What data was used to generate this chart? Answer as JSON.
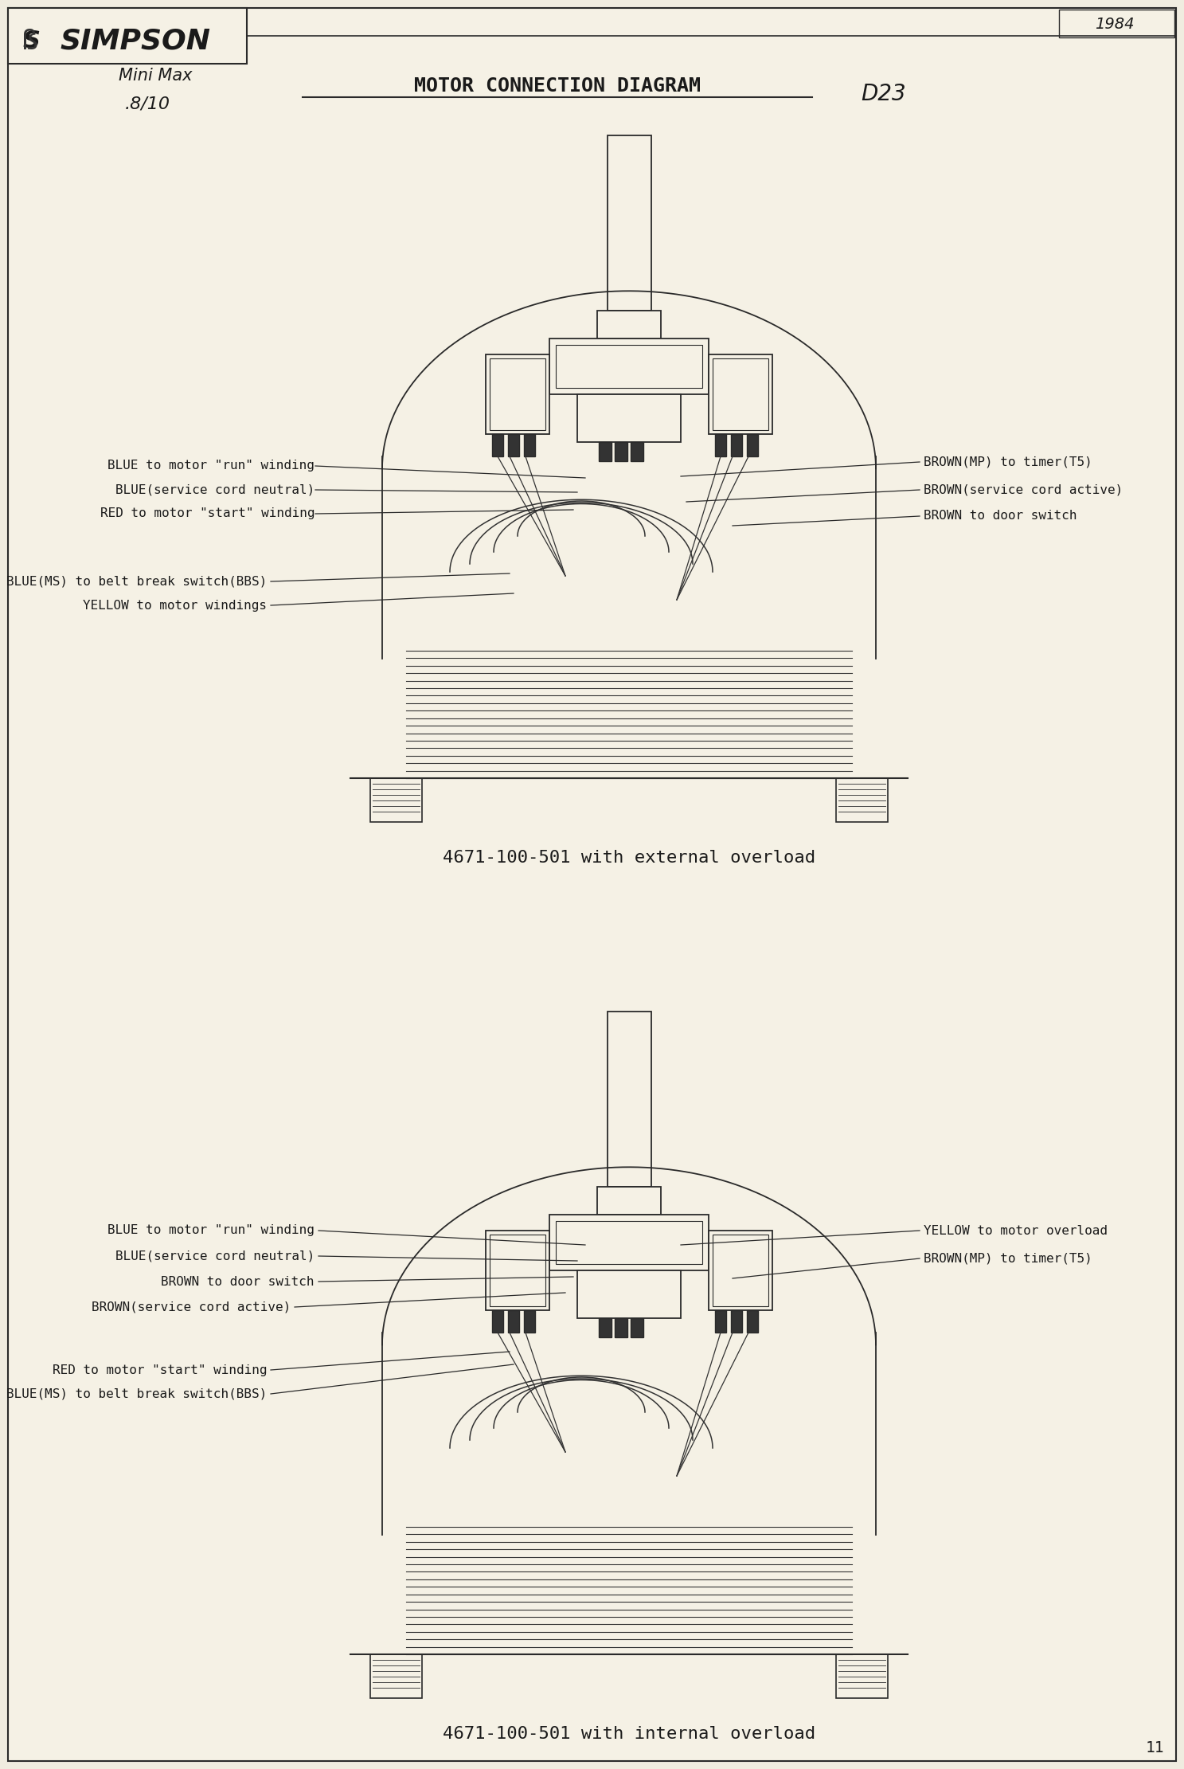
{
  "bg_color": "#f0ece0",
  "page_color": "#f5f1e5",
  "title_main": "MOTOR CONNECTION DIAGRAM",
  "brand": "SIMPSON",
  "handwritten_top": "Mini Max",
  "handwritten_model": ".8/10",
  "handwritten_code": "D23",
  "handwritten_year": "1984",
  "diagram1_caption": "4671-100-501 with external overload",
  "diagram2_caption": "4671-100-501 with internal overload",
  "page_number": "11",
  "line_color": "#2a2a2a",
  "text_color": "#1a1a1a",
  "diagram1_labels_left": [
    "BLUE to motor \"run\" winding",
    "BLUE(service cord neutral)",
    "RED to motor \"start\" winding",
    "BLUE(MS) to belt break switch(BBS)",
    "YELLOW to motor windings"
  ],
  "diagram1_labels_right": [
    "BROWN(MP) to timer(T5)",
    "BROWN(service cord active)",
    "BROWN to door switch"
  ],
  "diagram2_labels_left": [
    "BLUE to motor \"run\" winding",
    "BLUE(service cord neutral)",
    "BROWN to door switch",
    "BROWN(service cord active)",
    "RED to motor \"start\" winding",
    "BLUE(MS) to belt break switch(BBS)"
  ],
  "diagram2_labels_right": [
    "YELLOW to motor overload",
    "BROWN(MP) to timer(T5)"
  ]
}
